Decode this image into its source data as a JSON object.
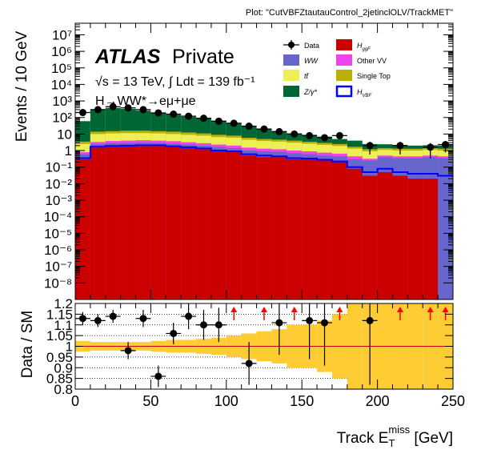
{
  "plot_label": "Plot: \"CutVBFZtautauControl_2jetinclOLV/TrackMET\"",
  "atlas_label": "ATLAS",
  "private_label": "Private",
  "energy_label": "√s = 13 TeV, ∫ Ldt = 139 fb⁻¹",
  "process_label": "H→WW*→eμ+μe",
  "colors": {
    "data": "#000000",
    "ggF": "#cc0000",
    "WW": "#6666cc",
    "OtherVV": "#ee44ee",
    "ttbar": "#eeee55",
    "SingleTop": "#bbb00a",
    "Zgamma": "#006633",
    "VBF": "#0000ff",
    "band": "#ffcc33",
    "arrow": "#ff0000",
    "unity": "#cc0000"
  },
  "chart_data": [
    {
      "type": "bar",
      "stacked": true,
      "ylog": true,
      "ylabel": "Events / 10 GeV",
      "xlabel": "",
      "xlim": [
        0,
        250
      ],
      "ylim": [
        1e-09,
        50000000.0
      ],
      "yticks": [
        "10⁻⁸",
        "10⁻⁷",
        "10⁻⁶",
        "10⁻⁵",
        "10⁻⁴",
        "10⁻³",
        "10⁻²",
        "10⁻¹",
        "1",
        "10",
        "10²",
        "10³",
        "10⁴",
        "10⁵",
        "10⁶",
        "10⁷"
      ],
      "bin_edges": [
        0,
        10,
        20,
        30,
        40,
        50,
        60,
        70,
        80,
        90,
        100,
        110,
        120,
        130,
        140,
        150,
        160,
        170,
        180,
        190,
        200,
        210,
        220,
        230,
        240,
        250
      ],
      "legend_position": "top-right",
      "legend": [
        {
          "key": "data",
          "label": "Data",
          "marker": "point"
        },
        {
          "key": "ggF",
          "label": "H_ggF",
          "marker": "box"
        },
        {
          "key": "WW",
          "label": "WW",
          "marker": "box"
        },
        {
          "key": "OtherVV",
          "label": "Other VV",
          "marker": "box"
        },
        {
          "key": "ttbar",
          "label": "tt̄",
          "marker": "box"
        },
        {
          "key": "SingleTop",
          "label": "Single Top",
          "marker": "box"
        },
        {
          "key": "Zgamma",
          "label": "Z/γ*",
          "marker": "box"
        },
        {
          "key": "VBF",
          "label": "H_VBF",
          "marker": "line"
        }
      ],
      "stack_totals": [
        {
          "key": "ggF",
          "values": [
            0.3,
            1.5,
            1.7,
            1.8,
            1.9,
            1.9,
            1.6,
            1.4,
            1.2,
            0.9,
            0.8,
            0.5,
            0.4,
            0.4,
            0.3,
            0.3,
            0.25,
            0.2,
            0.08,
            0.03,
            0.05,
            0.03,
            0.02,
            0.02,
            0.0
          ]
        },
        {
          "key": "WW",
          "values": [
            0.6,
            2.4,
            2.8,
            2.9,
            3.0,
            2.9,
            2.6,
            2.3,
            2.0,
            1.6,
            1.4,
            1.0,
            0.9,
            0.85,
            0.7,
            0.6,
            0.5,
            0.45,
            0.3,
            0.25,
            0.4,
            0.35,
            0.35,
            0.4,
            0.35
          ]
        },
        {
          "key": "OtherVV",
          "values": [
            0.8,
            3.3,
            3.8,
            4.0,
            4.2,
            4.0,
            3.7,
            3.2,
            2.8,
            2.3,
            2.0,
            1.5,
            1.3,
            1.2,
            1.0,
            0.9,
            0.75,
            0.65,
            0.45,
            0.32,
            0.5,
            0.45,
            0.45,
            0.5,
            0.45
          ]
        },
        {
          "key": "ttbar",
          "values": [
            2.5,
            10,
            11,
            11.5,
            11.5,
            11,
            10,
            9,
            8,
            6.5,
            6,
            4.5,
            3.8,
            3.5,
            3.0,
            2.6,
            2.2,
            1.9,
            1.3,
            0.9,
            1.1,
            1.0,
            1.0,
            1.1,
            1.0
          ]
        },
        {
          "key": "SingleTop",
          "values": [
            3.5,
            14,
            15,
            16,
            16,
            15,
            14,
            12.5,
            11,
            9,
            8,
            6,
            5,
            4.6,
            4,
            3.4,
            2.9,
            2.5,
            1.7,
            1.2,
            1.4,
            1.3,
            1.3,
            1.4,
            1.3
          ]
        },
        {
          "key": "Zgamma",
          "values": [
            60,
            300,
            380,
            330,
            260,
            200,
            150,
            110,
            90,
            60,
            45,
            30,
            20,
            15,
            11,
            9,
            7,
            5,
            4,
            2.5,
            2.4,
            2.2,
            2.0,
            2.1,
            2.0
          ]
        }
      ],
      "vbf_values": [
        0.35,
        1.7,
        1.9,
        2.0,
        2.1,
        2.1,
        1.8,
        1.6,
        1.35,
        1.0,
        0.9,
        0.6,
        0.5,
        0.45,
        0.35,
        0.33,
        0.28,
        0.22,
        0.1,
        0.05,
        0.08,
        0.05,
        0.04,
        0.04,
        0.03
      ],
      "data_points": [
        {
          "x": 5,
          "y": 200
        },
        {
          "x": 15,
          "y": 300
        },
        {
          "x": 25,
          "y": 450
        },
        {
          "x": 35,
          "y": 380
        },
        {
          "x": 45,
          "y": 300
        },
        {
          "x": 55,
          "y": 190
        },
        {
          "x": 65,
          "y": 160
        },
        {
          "x": 75,
          "y": 120
        },
        {
          "x": 85,
          "y": 90
        },
        {
          "x": 95,
          "y": 60
        },
        {
          "x": 105,
          "y": 45
        },
        {
          "x": 115,
          "y": 30
        },
        {
          "x": 125,
          "y": 20
        },
        {
          "x": 135,
          "y": 14
        },
        {
          "x": 145,
          "y": 10
        },
        {
          "x": 155,
          "y": 8
        },
        {
          "x": 165,
          "y": 6
        },
        {
          "x": 175,
          "y": 8
        },
        {
          "x": 195,
          "y": 2
        },
        {
          "x": 215,
          "y": 2
        },
        {
          "x": 235,
          "y": 1.6
        },
        {
          "x": 245,
          "y": 2.3
        }
      ]
    },
    {
      "type": "scatter",
      "ylabel": "Data / SM",
      "xlabel": "Track E_T^miss [GeV]",
      "xlim": [
        0,
        250
      ],
      "ylim": [
        0.8,
        1.2
      ],
      "xticks": [
        0,
        50,
        100,
        150,
        200,
        250
      ],
      "yticks": [
        "0.8",
        "0.85",
        "0.9",
        "0.95",
        "1",
        "1.05",
        "1.1",
        "1.15",
        "1.2"
      ],
      "band_half_width": [
        0.025,
        0.02,
        0.02,
        0.02,
        0.02,
        0.025,
        0.03,
        0.03,
        0.035,
        0.04,
        0.05,
        0.06,
        0.07,
        0.08,
        0.1,
        0.1,
        0.12,
        0.15,
        0.2,
        0.2,
        0.2,
        0.2,
        0.2,
        0.2,
        0.2
      ],
      "points": [
        {
          "x": 5,
          "y": 1.13,
          "err": 0.03
        },
        {
          "x": 15,
          "y": 1.12,
          "err": 0.03
        },
        {
          "x": 25,
          "y": 1.14,
          "err": 0.03
        },
        {
          "x": 35,
          "y": 0.98,
          "err": 0.04
        },
        {
          "x": 45,
          "y": 1.13,
          "err": 0.04
        },
        {
          "x": 55,
          "y": 0.86,
          "err": 0.05
        },
        {
          "x": 65,
          "y": 1.06,
          "err": 0.05
        },
        {
          "x": 75,
          "y": 1.14,
          "err": 0.06
        },
        {
          "x": 85,
          "y": 1.1,
          "err": 0.07
        },
        {
          "x": 95,
          "y": 1.1,
          "err": 0.08
        },
        {
          "x": 115,
          "y": 0.92,
          "err": 0.1
        },
        {
          "x": 135,
          "y": 1.11,
          "err": 0.15
        },
        {
          "x": 155,
          "y": 1.12,
          "err": 0.18
        },
        {
          "x": 165,
          "y": 1.11,
          "err": 0.2
        },
        {
          "x": 195,
          "y": 1.12,
          "err": 0.3
        }
      ],
      "overflow_arrows_x": [
        105,
        125,
        145,
        175,
        215,
        235,
        245
      ]
    }
  ]
}
